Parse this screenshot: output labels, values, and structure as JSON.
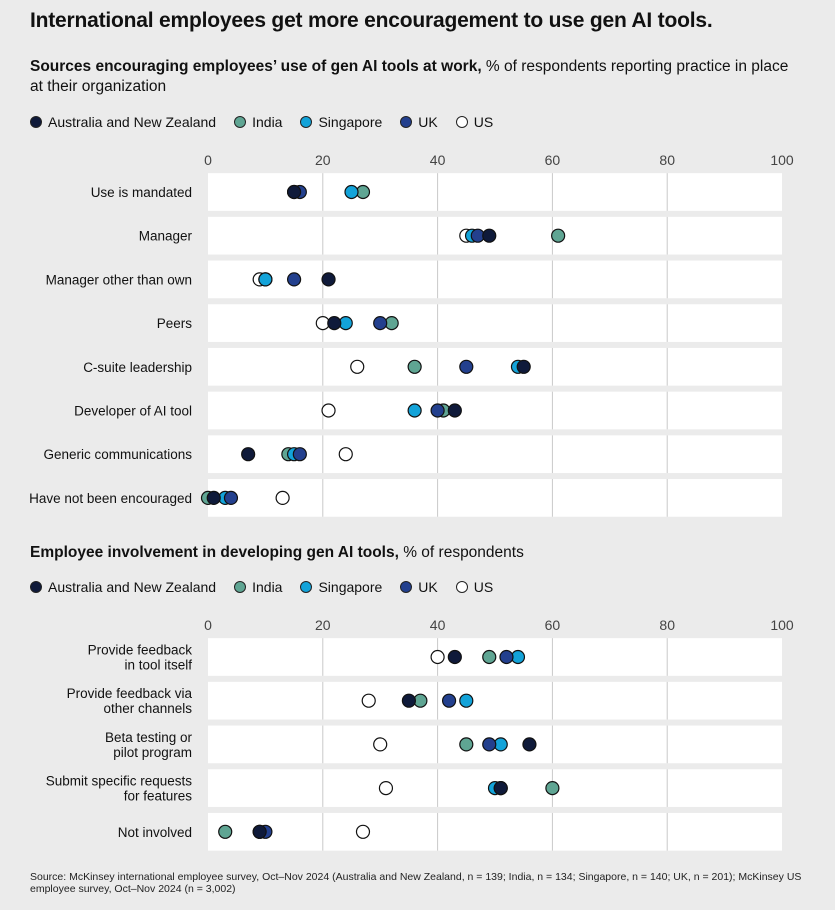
{
  "title": "International employees get more encouragement to use gen AI tools.",
  "series_legend": [
    {
      "name": "Australia and New Zealand",
      "color": "#0f1a3a"
    },
    {
      "name": "India",
      "color": "#5fa593"
    },
    {
      "name": "Singapore",
      "color": "#13a3d9"
    },
    {
      "name": "UK",
      "color": "#23408e"
    },
    {
      "name": "US",
      "color": "#ffffff"
    }
  ],
  "source": "Source: McKinsey international employee survey, Oct–Nov 2024 (Australia and New Zealand, n = 139; India, n = 134; Singapore, n = 140; UK, n = 201); McKinsey US employee survey, Oct–Nov 2024 (n = 3,002)",
  "chart_data": [
    {
      "type": "scatter",
      "title_bold": "Sources encouraging employees’ use of gen AI tools at work,",
      "title_rest": " % of respondents reporting practice in place at their organization",
      "xlim": [
        0,
        100
      ],
      "ticks": [
        0,
        20,
        40,
        60,
        80,
        100
      ],
      "categories": [
        [
          "Use is mandated"
        ],
        [
          "Manager"
        ],
        [
          "Manager other than own"
        ],
        [
          "Peers"
        ],
        [
          "C-suite leadership"
        ],
        [
          "Developer of AI tool"
        ],
        [
          "Generic communications"
        ],
        [
          "Have not been encouraged"
        ]
      ],
      "series": [
        {
          "name": "US",
          "values": [
            15,
            45,
            9,
            20,
            26,
            21,
            24,
            13
          ]
        },
        {
          "name": "India",
          "values": [
            27,
            61,
            10,
            32,
            36,
            41,
            14,
            0
          ]
        },
        {
          "name": "Singapore",
          "values": [
            25,
            46,
            10,
            24,
            54,
            36,
            15,
            3
          ]
        },
        {
          "name": "UK",
          "values": [
            16,
            47,
            15,
            30,
            45,
            40,
            16,
            4
          ]
        },
        {
          "name": "Australia and New Zealand",
          "values": [
            15,
            49,
            21,
            22,
            55,
            43,
            7,
            1
          ]
        }
      ]
    },
    {
      "type": "scatter",
      "title_bold": "Employee involvement in developing gen AI tools,",
      "title_rest": " % of respondents",
      "xlim": [
        0,
        100
      ],
      "ticks": [
        0,
        20,
        40,
        60,
        80,
        100
      ],
      "categories": [
        [
          "Provide feedback",
          "in tool itself"
        ],
        [
          "Provide feedback via",
          "other channels"
        ],
        [
          "Beta testing or",
          "pilot program"
        ],
        [
          "Submit specific requests",
          "for features"
        ],
        [
          "Not involved"
        ]
      ],
      "series": [
        {
          "name": "US",
          "values": [
            40,
            28,
            30,
            31,
            27
          ]
        },
        {
          "name": "India",
          "values": [
            49,
            37,
            45,
            60,
            3
          ]
        },
        {
          "name": "Singapore",
          "values": [
            54,
            45,
            51,
            50,
            9
          ]
        },
        {
          "name": "UK",
          "values": [
            52,
            42,
            49,
            51,
            10
          ]
        },
        {
          "name": "Australia and New Zealand",
          "values": [
            43,
            35,
            56,
            51,
            9
          ]
        }
      ]
    }
  ]
}
